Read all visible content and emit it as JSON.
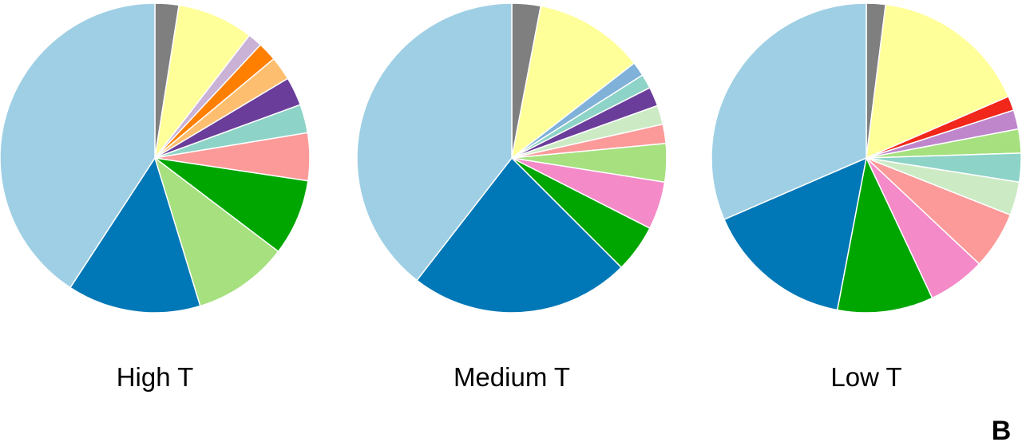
{
  "panel_label": "B",
  "chart_data": [
    {
      "type": "pie",
      "title": "High T",
      "start_angle": "12 o'clock",
      "direction": "clockwise",
      "slice_border": "#ffffff",
      "values": [
        2.5,
        8.0,
        1.5,
        2.0,
        2.5,
        3.0,
        3.0,
        5.0,
        8.0,
        10.0,
        14.0,
        41.0
      ],
      "colors": [
        "#7f7f7f",
        "#ffff99",
        "#cab2d6",
        "#ff7f00",
        "#fdbf6f",
        "#6a3d9a",
        "#8dd3c7",
        "#fb9a99",
        "#00a600",
        "#a6e07f",
        "#0077b6",
        "#9fcfe4"
      ]
    },
    {
      "type": "pie",
      "title": "Medium T",
      "start_angle": "12 o'clock",
      "direction": "clockwise",
      "slice_border": "#ffffff",
      "values": [
        3.0,
        11.5,
        1.5,
        1.5,
        2.0,
        2.0,
        2.0,
        4.0,
        5.0,
        5.0,
        23.0,
        39.5
      ],
      "colors": [
        "#7f7f7f",
        "#ffff99",
        "#7fb1d9",
        "#8dd3c7",
        "#6a3d9a",
        "#ccebc5",
        "#fb9a99",
        "#a6e07f",
        "#f48ac8",
        "#00a600",
        "#0077b6",
        "#9fcfe4"
      ]
    },
    {
      "type": "pie",
      "title": "Low T",
      "start_angle": "12 o'clock",
      "direction": "clockwise",
      "slice_border": "#ffffff",
      "values": [
        2.0,
        16.5,
        1.5,
        2.0,
        2.5,
        3.0,
        3.5,
        6.0,
        6.0,
        10.0,
        15.5,
        31.5
      ],
      "colors": [
        "#7f7f7f",
        "#ffff99",
        "#f0271a",
        "#bf86cc",
        "#a6e07f",
        "#8dd3c7",
        "#ccebc5",
        "#fb9a99",
        "#f48ac8",
        "#00a600",
        "#0077b6",
        "#9fcfe4"
      ]
    }
  ]
}
